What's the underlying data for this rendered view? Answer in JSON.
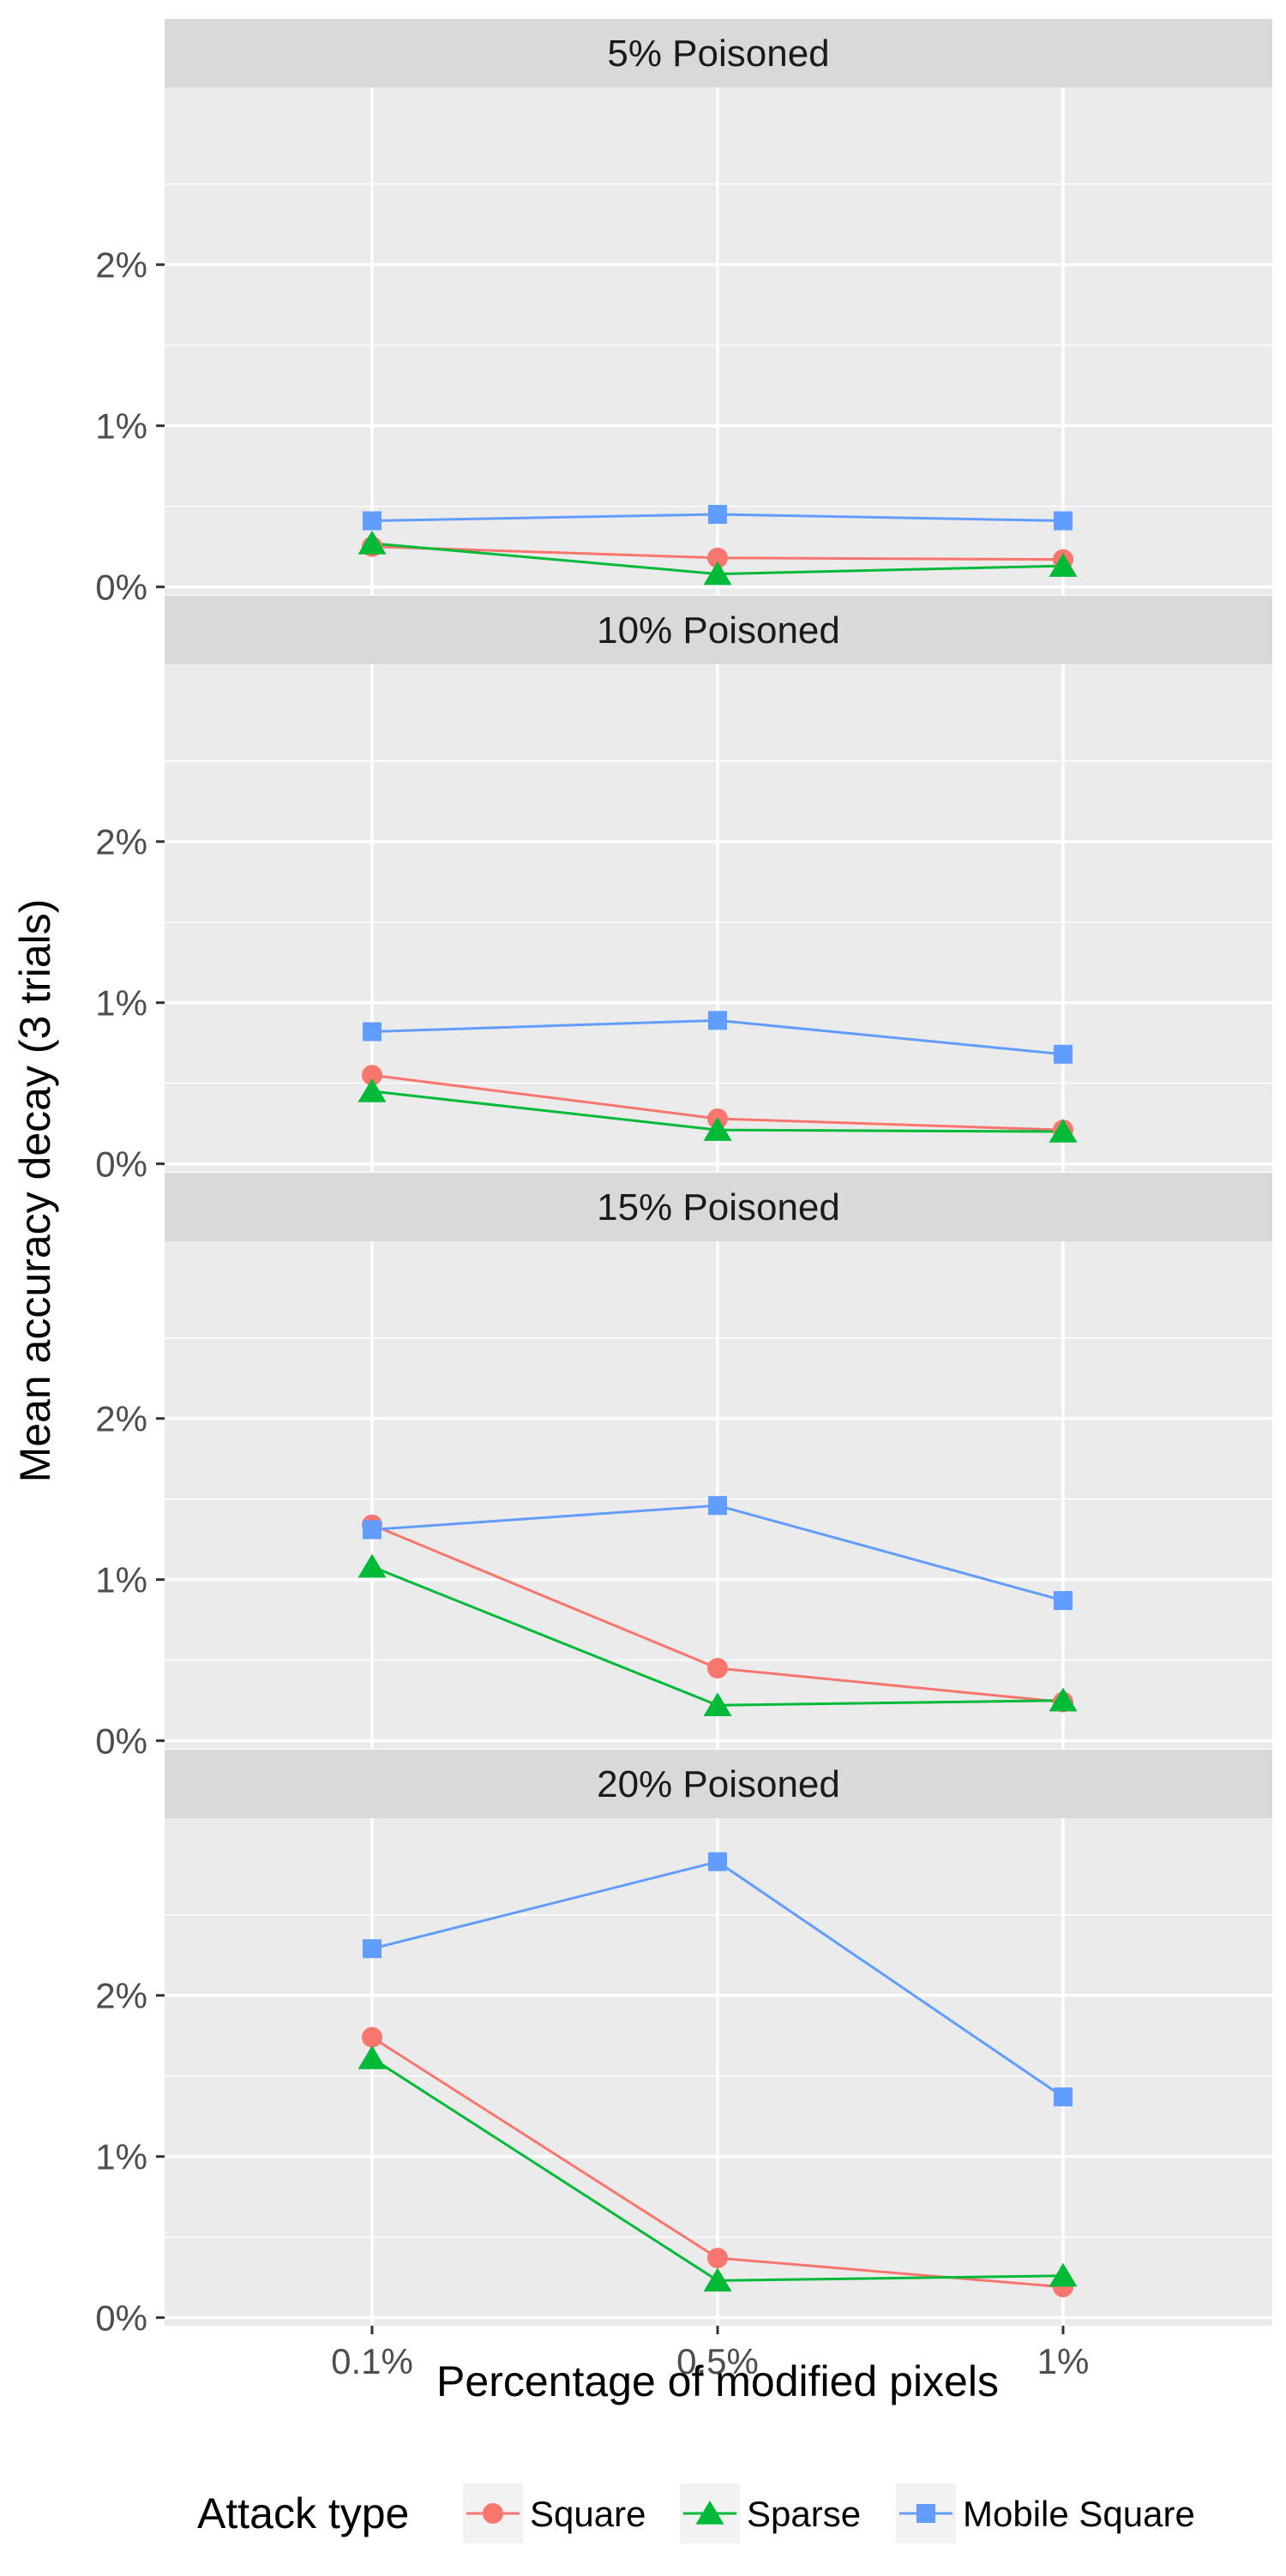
{
  "chart_data": {
    "type": "line",
    "facet_titles": [
      "5% Poisoned",
      "10% Poisoned",
      "15% Poisoned",
      "20% Poisoned"
    ],
    "categories": [
      "0.1%",
      "0.5%",
      "1%"
    ],
    "xlabel": "Percentage of modified pixels",
    "ylabel": "Mean accuracy decay (3 trials)",
    "yticks": [
      "0%",
      "1%",
      "2%"
    ],
    "ylim": [
      -0.0005,
      0.031
    ],
    "grid": true,
    "legend": {
      "title": "Attack type",
      "position": "bottom",
      "entries": [
        "Square",
        "Sparse",
        "Mobile Square"
      ]
    },
    "colors": {
      "Square": "#F8766D",
      "Sparse": "#00BA38",
      "Mobile Square": "#619CFF"
    },
    "markers": {
      "Square": "circle",
      "Sparse": "triangle",
      "Mobile Square": "square"
    },
    "panels": [
      {
        "title": "5% Poisoned",
        "series": [
          {
            "name": "Square",
            "values": [
              0.0025,
              0.0018,
              0.0017
            ]
          },
          {
            "name": "Sparse",
            "values": [
              0.0027,
              0.0008,
              0.0013
            ]
          },
          {
            "name": "Mobile Square",
            "values": [
              0.0041,
              0.0045,
              0.0041
            ]
          }
        ]
      },
      {
        "title": "10% Poisoned",
        "series": [
          {
            "name": "Square",
            "values": [
              0.0055,
              0.0028,
              0.0021
            ]
          },
          {
            "name": "Sparse",
            "values": [
              0.0045,
              0.0021,
              0.002
            ]
          },
          {
            "name": "Mobile Square",
            "values": [
              0.0082,
              0.0089,
              0.0068
            ]
          }
        ]
      },
      {
        "title": "15% Poisoned",
        "series": [
          {
            "name": "Square",
            "values": [
              0.0134,
              0.0045,
              0.0024
            ]
          },
          {
            "name": "Sparse",
            "values": [
              0.0108,
              0.0022,
              0.0025
            ]
          },
          {
            "name": "Mobile Square",
            "values": [
              0.0131,
              0.0146,
              0.0087
            ]
          }
        ]
      },
      {
        "title": "20% Poisoned",
        "series": [
          {
            "name": "Square",
            "values": [
              0.0174,
              0.0037,
              0.0019
            ]
          },
          {
            "name": "Sparse",
            "values": [
              0.0161,
              0.0023,
              0.0026
            ]
          },
          {
            "name": "Mobile Square",
            "values": [
              0.0229,
              0.0283,
              0.0137
            ]
          }
        ]
      }
    ]
  }
}
